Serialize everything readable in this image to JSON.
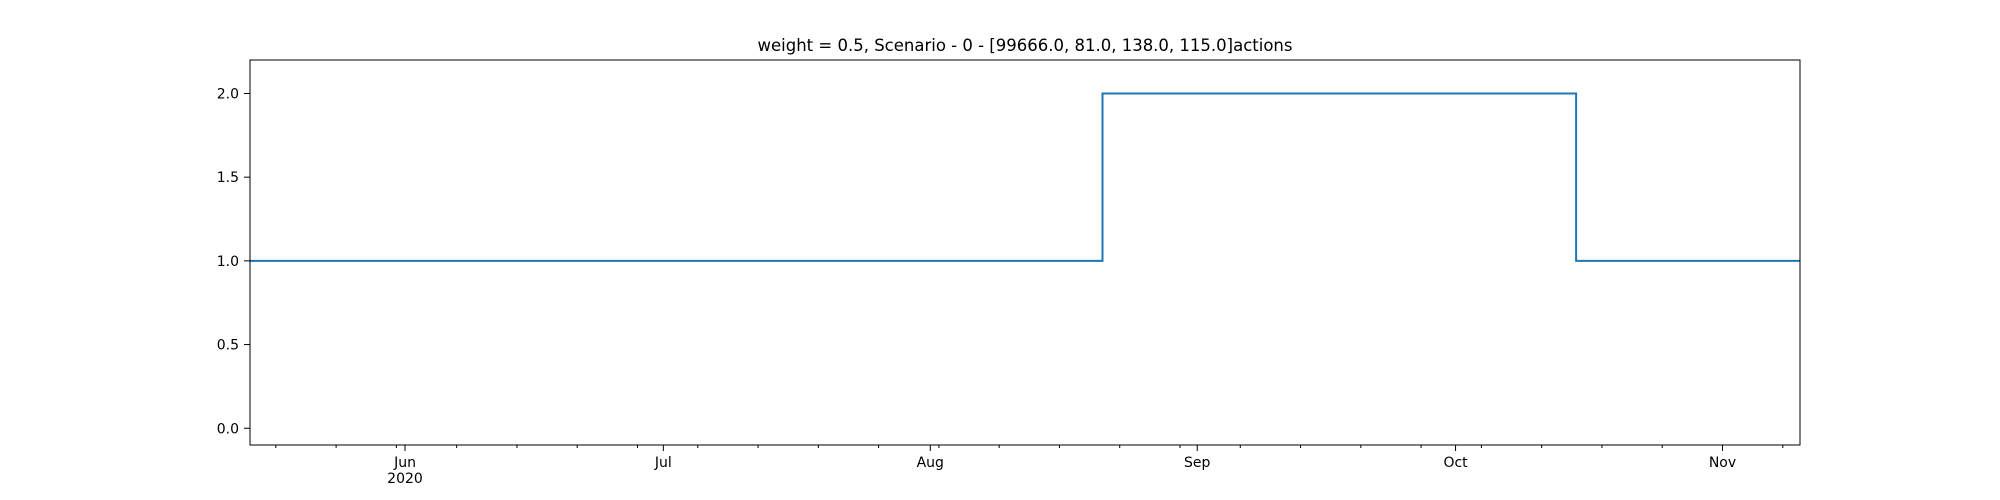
{
  "chart_data": {
    "type": "line",
    "title": "weight = 0.5, Scenario - 0 - [99666.0, 81.0, 138.0, 115.0]actions",
    "xlabel": "",
    "ylabel": "",
    "x_range": [
      "2020-05-14",
      "2020-11-10"
    ],
    "ylim": [
      -0.1,
      2.2
    ],
    "grid": false,
    "step": true,
    "series": [
      {
        "color": "#1f77b4",
        "points": [
          {
            "x": "2020-05-14",
            "y": 1.0
          },
          {
            "x": "2020-08-21",
            "y": 1.0
          },
          {
            "x": "2020-08-21",
            "y": 2.0
          },
          {
            "x": "2020-10-15",
            "y": 2.0
          },
          {
            "x": "2020-10-15",
            "y": 1.0
          },
          {
            "x": "2020-11-10",
            "y": 1.0
          }
        ]
      }
    ],
    "y_ticks": [
      {
        "value": 0.0,
        "label": "0.0"
      },
      {
        "value": 0.5,
        "label": "0.5"
      },
      {
        "value": 1.0,
        "label": "1.0"
      },
      {
        "value": 1.5,
        "label": "1.5"
      },
      {
        "value": 2.0,
        "label": "2.0"
      }
    ],
    "x_major_ticks": [
      {
        "date": "2020-06-01",
        "label": "Jun",
        "sublabel": "2020"
      },
      {
        "date": "2020-07-01",
        "label": "Jul",
        "sublabel": ""
      },
      {
        "date": "2020-08-01",
        "label": "Aug",
        "sublabel": ""
      },
      {
        "date": "2020-09-01",
        "label": "Sep",
        "sublabel": ""
      },
      {
        "date": "2020-10-01",
        "label": "Oct",
        "sublabel": ""
      },
      {
        "date": "2020-11-01",
        "label": "Nov",
        "sublabel": ""
      }
    ],
    "x_minor_ticks": [
      "2020-05-17",
      "2020-05-24",
      "2020-05-31",
      "2020-06-07",
      "2020-06-14",
      "2020-06-21",
      "2020-06-28",
      "2020-07-05",
      "2020-07-12",
      "2020-07-19",
      "2020-07-26",
      "2020-08-02",
      "2020-08-09",
      "2020-08-16",
      "2020-08-23",
      "2020-08-30",
      "2020-09-06",
      "2020-09-13",
      "2020-09-20",
      "2020-09-27",
      "2020-10-04",
      "2020-10-11",
      "2020-10-18",
      "2020-10-25",
      "2020-11-01",
      "2020-11-08"
    ]
  }
}
